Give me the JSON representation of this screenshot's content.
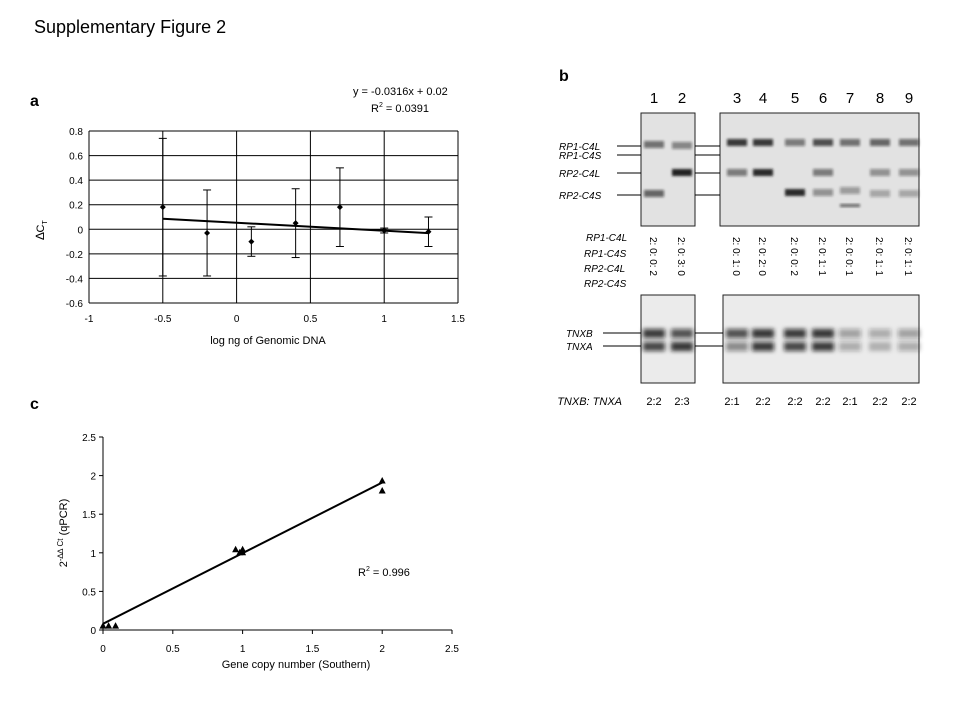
{
  "figure_title": "Supplementary Figure 2",
  "panel_a": {
    "letter": "a",
    "equation": "y = -0.0316x + 0.02",
    "r2_prefix": "R",
    "r2_sup": "2",
    "r2_value": " = 0.0391",
    "ylabel_symbol": "∆",
    "ylabel_c": "C",
    "ylabel_sub": "T",
    "xlabel": "log ng of Genomic DNA",
    "xticks": [
      "-1",
      "-0.5",
      "0",
      "0.5",
      "1",
      "1.5"
    ],
    "yticks": [
      "0.8",
      "0.6",
      "0.4",
      "0.2",
      "0",
      "-0.2",
      "-0.4",
      "-0.6"
    ]
  },
  "panel_c": {
    "letter": "c",
    "r2_prefix": "R",
    "r2_sup": "2",
    "r2_value": " = 0.996",
    "ylabel_base": "2",
    "ylabel_exp": "-∆∆ Ct",
    "ylabel_suffix": " (qPCR)",
    "xlabel": "Gene copy number (Southern)",
    "xticks": [
      "0",
      "0.5",
      "1",
      "1.5",
      "2",
      "2.5"
    ],
    "yticks": [
      "2.5",
      "2",
      "1.5",
      "1",
      "0.5",
      "0"
    ]
  },
  "panel_b": {
    "letter": "b",
    "lane_numbers": [
      "1",
      "2",
      "3",
      "4",
      "5",
      "6",
      "7",
      "8",
      "9"
    ],
    "upper_band_labels": [
      "RP1-C4L",
      "RP1-C4S",
      "RP2-C4L",
      "RP2-C4S"
    ],
    "ratio_header_labels": [
      "RP1-C4L",
      "RP1-C4S",
      "RP2-C4L",
      "RP2-C4S"
    ],
    "lane_ratios": [
      "2: 0: 0: 2",
      "2: 0: 3: 0",
      "2: 0: 1: 0",
      "2: 0: 2: 0",
      "2: 0: 0: 2",
      "2: 0: 1: 1",
      "2: 0: 0: 1",
      "2: 0: 1: 1",
      "2: 0: 1: 1"
    ],
    "lower_band_labels": [
      "TNXB",
      "TNXA"
    ],
    "tnx_ratio_label": "TNXB: TNXA",
    "tnx_ratios": [
      "2:2",
      "2:3",
      "2:1",
      "2:2",
      "2:2",
      "2:2",
      "2:1",
      "2:2",
      "2:2"
    ]
  },
  "chart_data": [
    {
      "type": "scatter",
      "panel": "a",
      "xlabel": "log ng of Genomic DNA",
      "ylabel": "∆CT",
      "xlim": [
        -1,
        1.5
      ],
      "ylim": [
        -0.6,
        0.8
      ],
      "grid": true,
      "points": [
        {
          "x": -0.5,
          "y": 0.18,
          "err": 0.56
        },
        {
          "x": -0.2,
          "y": -0.03,
          "err": 0.35
        },
        {
          "x": 0.1,
          "y": -0.1,
          "err": 0.12
        },
        {
          "x": 0.4,
          "y": 0.05,
          "err": 0.28
        },
        {
          "x": 0.7,
          "y": 0.18,
          "err": 0.32
        },
        {
          "x": 1.0,
          "y": -0.01,
          "err": 0.02
        },
        {
          "x": 1.3,
          "y": -0.02,
          "err": 0.12
        }
      ],
      "trendline": {
        "slope": -0.0316,
        "intercept": 0.02,
        "x_range": [
          -0.5,
          1.3
        ]
      },
      "equation": "y = -0.0316x + 0.02",
      "r2": "0.0391"
    },
    {
      "type": "scatter",
      "panel": "c",
      "xlabel": "Gene copy number (Southern)",
      "ylabel": "2-∆∆Ct (qPCR)",
      "xlim": [
        0,
        2.5
      ],
      "ylim": [
        0,
        2.5
      ],
      "grid": false,
      "marker": "triangle",
      "points": [
        {
          "x": 0.0,
          "y": 0.05
        },
        {
          "x": 0.04,
          "y": 0.05
        },
        {
          "x": 0.09,
          "y": 0.05
        },
        {
          "x": 0.95,
          "y": 1.04
        },
        {
          "x": 0.98,
          "y": 1.0
        },
        {
          "x": 1.0,
          "y": 1.04
        },
        {
          "x": 1.0,
          "y": 1.0
        },
        {
          "x": 2.0,
          "y": 1.93
        },
        {
          "x": 2.0,
          "y": 1.8
        }
      ],
      "trendline": {
        "x_range": [
          0,
          2
        ],
        "y_range": [
          0.08,
          1.91
        ]
      },
      "r2": "0.996"
    }
  ]
}
